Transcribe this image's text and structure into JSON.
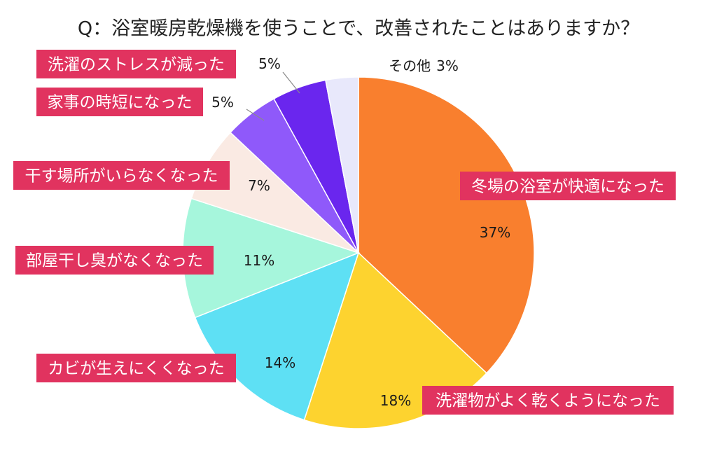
{
  "chart_data": {
    "type": "pie",
    "title": "Q：浴室暖房乾燥機を使うことで、改善されたことはありますか？",
    "categories": [
      "冬場の浴室が快適になった",
      "洗濯物がよく乾くようになった",
      "カビが生えにくくなった",
      "部屋干し臭がなくなった",
      "干す場所がいらなくなった",
      "家事の時短になった",
      "洗濯のストレスが減った",
      "その他"
    ],
    "values": [
      37,
      18,
      14,
      11,
      7,
      5,
      5,
      3
    ],
    "unit": "%",
    "colors": [
      "#F97F2E",
      "#FDD32F",
      "#5EE0F4",
      "#A6F6DC",
      "#FAEAE3",
      "#8F59FA",
      "#6A26EE",
      "#E8E8FB"
    ],
    "label_box_color": "#E1335F"
  }
}
